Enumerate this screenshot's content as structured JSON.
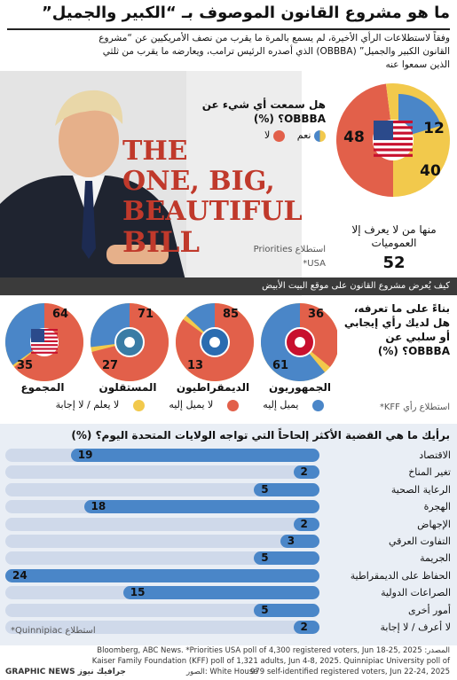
{
  "title": "ما هو مشروع القانون الموصوف بـ “الكبير والجميل”",
  "intro": "وفقاً لاستطلاعات الرأي الأخيرة، لم يسمع بالمرة ما يقرب من نصف الأمريكيين عن “مشروع القانون الكبير والجميل” (OBBBA) الذي أصدره الرئيس ترامب، ويعارضه ما يقرب من ثلثي الذين سمعوا عنه",
  "colors": {
    "red": "#e2604a",
    "blue": "#4a86c8",
    "yellow": "#f2c94c",
    "ink": "#111111"
  },
  "book_title": [
    "THE",
    "ONE, BIG,",
    "BEAUTIFUL",
    "BILL"
  ],
  "heard": {
    "question": "هل سمعت أي شيء عن OBBBA؟ (%)",
    "legend_yes": "نعم",
    "legend_no": "لا",
    "poll_source": "استطلاع Priorities",
    "usa_note": "*USA",
    "unknown_note": "منها من لا يعرف إلا العموميات",
    "unknown_value": "52"
  },
  "caption": "كيف يُعرض مشروع القانون على موقع البيت الأبيض",
  "opinion": {
    "question": "بناءً على ما تعرفه، هل لديك رأي إيجابي أو سلبي عن OBBBA؟ (%)",
    "poll_source": "استطلاع رأي KFF*",
    "legend": {
      "favorable": "يميل إليه",
      "unfavorable": "لا يميل إليه",
      "dontknow": "لا يعلم / لا إجابة"
    },
    "groups": [
      {
        "name": "الجمهوريون",
        "favorable": 61,
        "unfavorable": 36,
        "icon": "elephant-icon"
      },
      {
        "name": "الديمقراطيون",
        "favorable": 13,
        "unfavorable": 85,
        "icon": "donkey-icon"
      },
      {
        "name": "المستقلون",
        "favorable": 27,
        "unfavorable": 71,
        "icon": "hand-icon"
      },
      {
        "name": "المجموع",
        "favorable": 35,
        "unfavorable": 64,
        "icon": "us-flag-icon"
      }
    ]
  },
  "issues": {
    "question": "برأيك ما هي القضية الأكثر إلحاحاً التي تواجه الولايات المتحدة اليوم؟ (%)",
    "poll_source": "استطلاع Quinnipiac*"
  },
  "chart_data": [
    {
      "type": "pie",
      "title": "هل سمعت أي شيء عن OBBBA؟ (%)",
      "categories": [
        "نعم",
        "لا",
        "منها من لا يعرف إلا العموميات"
      ],
      "values": [
        12,
        48,
        40
      ]
    },
    {
      "type": "pie",
      "title": "بناءً على ما تعرفه، هل لديك رأي إيجابي أو سلبي عن OBBBA؟ (%)",
      "categories": [
        "الجمهوريون",
        "الديمقراطيون",
        "المستقلون",
        "المجموع"
      ],
      "series": [
        {
          "name": "يميل إليه",
          "values": [
            61,
            13,
            27,
            35
          ]
        },
        {
          "name": "لا يميل إليه",
          "values": [
            36,
            85,
            71,
            64
          ]
        }
      ]
    },
    {
      "type": "bar",
      "title": "برأيك ما هي القضية الأكثر إلحاحاً التي تواجه الولايات المتحدة اليوم؟ (%)",
      "categories": [
        "الاقتصاد",
        "تغير المناخ",
        "الرعاية الصحية",
        "الهجرة",
        "الإجهاض",
        "التفاوت العرقي",
        "الجريمة",
        "الحفاظ على الديمقراطية",
        "الصراعات الدولية",
        "أمور أخرى",
        "لا أعرف / لا إجابة"
      ],
      "values": [
        19,
        2,
        5,
        18,
        2,
        3,
        5,
        24,
        15,
        5,
        2
      ],
      "xlim": [
        0,
        24
      ]
    }
  ],
  "footer": {
    "source": "المصدر: Bloomberg, ABC News. *Priorities USA poll of 4,300 registered voters, Jun 18-25, 2025 Kaiser Family Foundation (KFF) poll of 1,321 adults, Jun 4-8, 2025. Quinnipiac University poll of 979 self-identified registered voters, Jun 22-24, 2025",
    "photo": "الصور: White House",
    "brand": "GRAPHIC NEWS جرافيك نيوز"
  }
}
